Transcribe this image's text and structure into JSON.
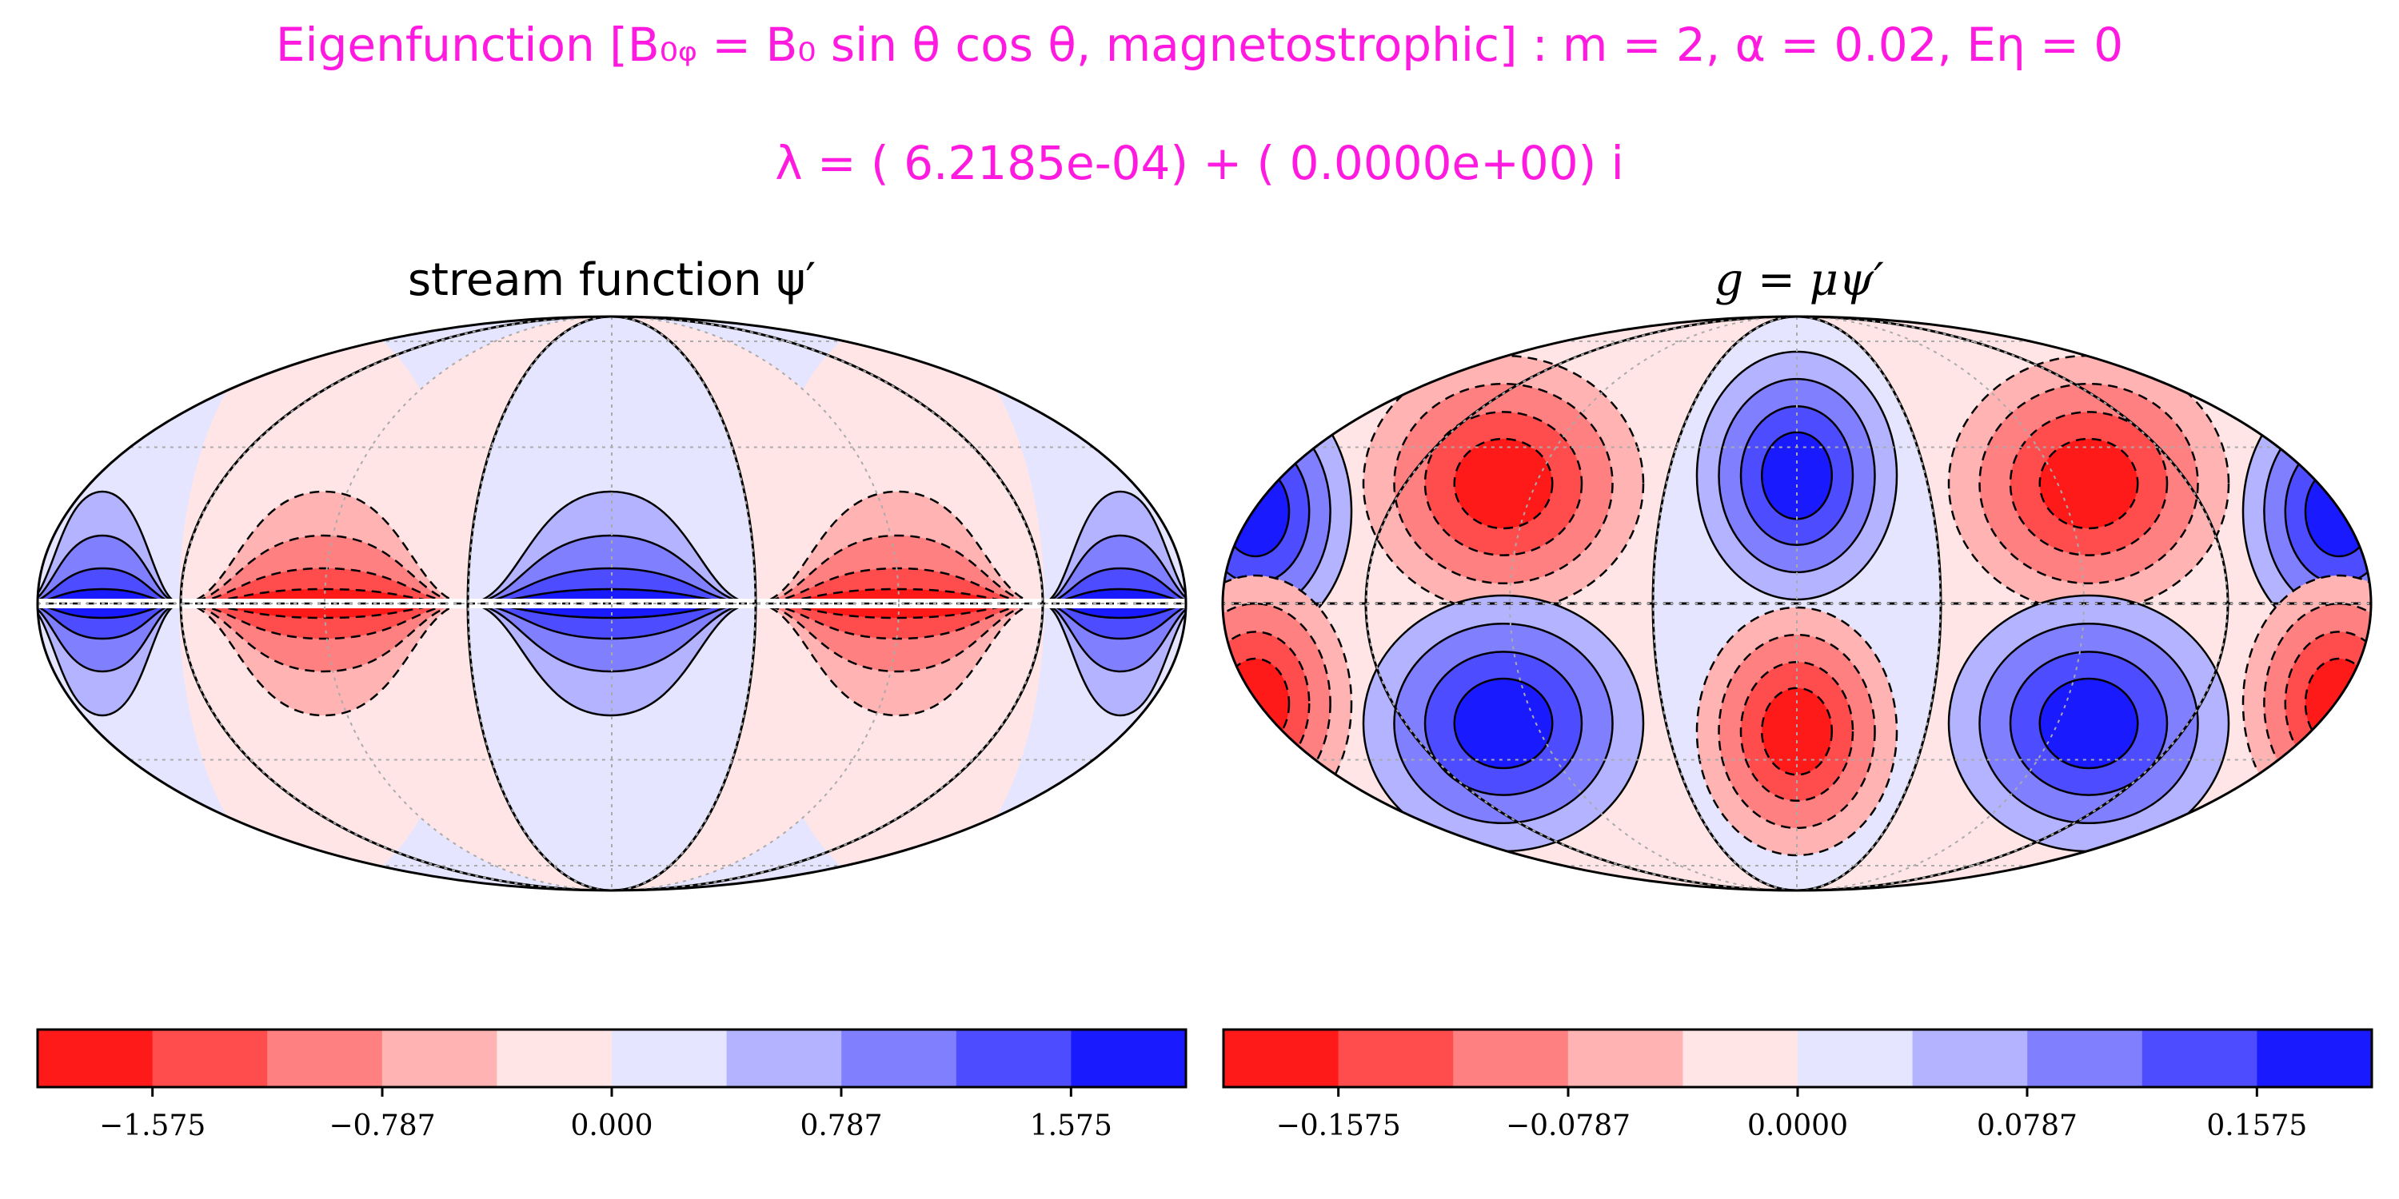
{
  "header": {
    "title_line1": "Eigenfunction [B₀ᵩ = B₀ sin θ cos θ, magnetostrophic] : m = 2, α = 0.02, Eη = 0",
    "title_line2": "λ = ( 6.2185e-04) + ( 0.0000e+00) i"
  },
  "colors": {
    "title": "#ff1adf",
    "bins": [
      "#ff1a1a",
      "#ff4d4d",
      "#ff8080",
      "#ffb3b3",
      "#ffe5e5",
      "#e5e5ff",
      "#b3b3ff",
      "#8080ff",
      "#4d4dff",
      "#1a1aff"
    ]
  },
  "chart_data": [
    {
      "type": "contour",
      "projection": "mollweide",
      "title": "stream function ψ′",
      "colorbar": {
        "ticks": [
          "−1.575",
          "−0.787",
          "0.000",
          "0.787",
          "1.575"
        ],
        "tick_values": [
          -1.575,
          -0.787,
          0.0,
          0.787,
          1.575
        ],
        "range": [
          -1.969,
          1.969
        ],
        "levels": 10
      },
      "field": "longitudinal wavenumber m = 2, concentrated near the equator",
      "grid": true,
      "negative_contours": "dashed"
    },
    {
      "type": "contour",
      "projection": "mollweide",
      "title": "g = μψ′",
      "colorbar": {
        "ticks": [
          "−0.1575",
          "−0.0787",
          "0.0000",
          "0.0787",
          "0.1575"
        ],
        "tick_values": [
          -0.1575,
          -0.0787,
          0.0,
          0.0787,
          0.1575
        ],
        "range": [
          -0.1969,
          0.1969
        ],
        "levels": 10
      },
      "field": "longitudinal wavenumber m = 2, antisymmetric about the equator",
      "grid": true,
      "negative_contours": "dashed"
    }
  ]
}
